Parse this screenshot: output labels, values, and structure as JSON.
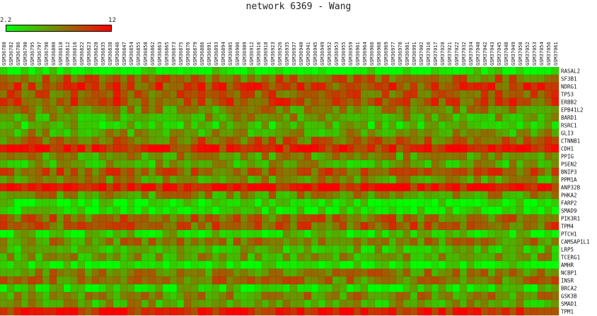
{
  "title": "network 6369 - Wang",
  "legend": {
    "min_label": "2.2",
    "max_label": "12",
    "min_color": "#00ff00",
    "max_color": "#ff0000"
  },
  "chart_data": {
    "type": "heatmap",
    "title": "network 6369 - Wang",
    "value_range": [
      2.2,
      12
    ],
    "color_scale": [
      "#00ff00",
      "#ff0000"
    ],
    "columns": [
      "GSM36780",
      "GSM36782",
      "GSM36786",
      "GSM36790",
      "GSM36795",
      "GSM36797",
      "GSM36798",
      "GSM36800",
      "GSM36810",
      "GSM36812",
      "GSM36816",
      "GSM36822",
      "GSM36823",
      "GSM36828",
      "GSM36835",
      "GSM36838",
      "GSM36846",
      "GSM36847",
      "GSM36854",
      "GSM36855",
      "GSM36858",
      "GSM36862",
      "GSM36863",
      "GSM36865",
      "GSM36873",
      "GSM36875",
      "GSM36876",
      "GSM36879",
      "GSM36886",
      "GSM36891",
      "GSM36893",
      "GSM36894",
      "GSM36905",
      "GSM36906",
      "GSM36909",
      "GSM36912",
      "GSM36916",
      "GSM36918",
      "GSM36923",
      "GSM36926",
      "GSM36935",
      "GSM36937",
      "GSM36940",
      "GSM36941",
      "GSM36945",
      "GSM36949",
      "GSM36952",
      "GSM36953",
      "GSM36955",
      "GSM36959",
      "GSM36961",
      "GSM36964",
      "GSM36966",
      "GSM36968",
      "GSM36969",
      "GSM36977",
      "GSM36978",
      "GSM36981",
      "GSM36991",
      "GSM37002",
      "GSM37016",
      "GSM37017",
      "GSM37020",
      "GSM37021",
      "GSM37022",
      "GSM37032",
      "GSM37034",
      "GSM37040",
      "GSM37042",
      "GSM37043",
      "GSM37045",
      "GSM37048",
      "GSM37049",
      "GSM37050",
      "GSM37052",
      "GSM37053",
      "GSM37054",
      "GSM37056",
      "GSM37061"
    ],
    "rows": [
      "RASAL2",
      "SF3B1",
      "NDRG1",
      "TP53",
      "ERBB2",
      "EPB41L2",
      "BARD1",
      "RSRC1",
      "GLI3",
      "CTNNB1",
      "CDH1",
      "PPIG",
      "PSEN2",
      "BNIP3",
      "PPM1A",
      "ANP32B",
      "PHKA2",
      "FARP2",
      "SMAD9",
      "PIK3R1",
      "TPM4",
      "PTCH1",
      "CAMSAP1L1",
      "LRP5",
      "TCERG1",
      "AMHR",
      "NCBP1",
      "INSR",
      "BRCA2",
      "GSK3B",
      "SMAD1",
      "TPM1"
    ],
    "row_means": [
      2.6,
      8.0,
      9.3,
      8.6,
      8.9,
      6.8,
      6.0,
      4.7,
      6.0,
      8.0,
      10.5,
      6.5,
      5.6,
      8.4,
      6.3,
      11.3,
      6.6,
      3.0,
      3.3,
      8.0,
      8.4,
      4.3,
      6.9,
      5.0,
      6.0,
      2.8,
      7.0,
      7.4,
      4.0,
      6.8,
      5.8,
      10.8
    ]
  }
}
